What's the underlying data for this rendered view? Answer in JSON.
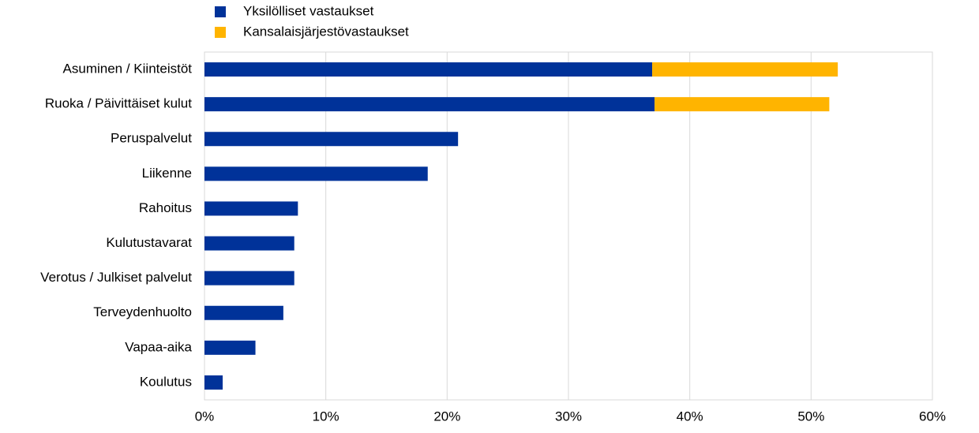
{
  "chart_data": {
    "type": "bar",
    "orientation": "horizontal",
    "stacked": true,
    "categories": [
      "Asuminen / Kiinteistöt",
      "Ruoka / Päivittäiset kulut",
      "Peruspalvelut",
      "Liikenne",
      "Rahoitus",
      "Kulutustavarat",
      "Verotus / Julkiset palvelut",
      "Terveydenhuolto",
      "Vapaa-aika",
      "Koulutus"
    ],
    "series": [
      {
        "name": "Yksilölliset vastaukset",
        "color": "#003299",
        "values": [
          36.9,
          37.1,
          20.9,
          18.4,
          7.7,
          7.4,
          7.4,
          6.5,
          4.2,
          1.5
        ]
      },
      {
        "name": "Kansalaisjärjestövastaukset",
        "color": "#ffb400",
        "values": [
          15.3,
          14.4,
          0,
          0,
          0,
          0,
          0,
          0,
          0,
          0
        ]
      }
    ],
    "xlim": [
      0,
      60
    ],
    "xticks": [
      {
        "value": 0,
        "label": "0%"
      },
      {
        "value": 10,
        "label": "10%"
      },
      {
        "value": 20,
        "label": "20%"
      },
      {
        "value": 30,
        "label": "30%"
      },
      {
        "value": 40,
        "label": "40%"
      },
      {
        "value": 50,
        "label": "50%"
      },
      {
        "value": 60,
        "label": "60%"
      }
    ],
    "grid": true,
    "legend": "top"
  }
}
